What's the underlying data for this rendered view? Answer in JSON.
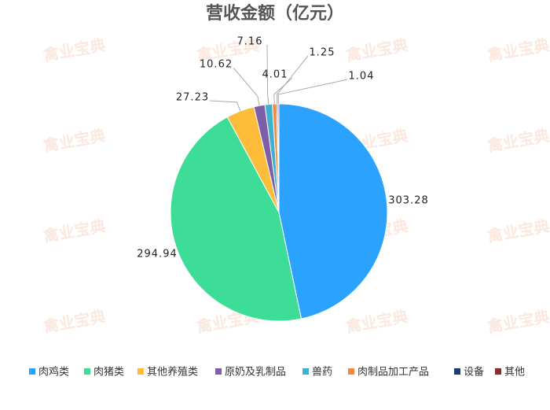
{
  "chart_data": {
    "type": "pie",
    "title": "营收金额（亿元）",
    "watermark": "禽业宝典",
    "categories": [
      "肉鸡类",
      "肉猪类",
      "其他养殖类",
      "原奶及乳制品",
      "兽药",
      "肉制品加工产品",
      "设备",
      "其他"
    ],
    "values": [
      303.28,
      294.94,
      27.23,
      10.62,
      7.16,
      4.01,
      1.25,
      1.04
    ],
    "colors": [
      "#2ca2ff",
      "#3ddc97",
      "#fdbc3a",
      "#7d5ea8",
      "#3fb0d0",
      "#f08a3e",
      "#1f3c70",
      "#8b2b2b"
    ],
    "legend": "bottom"
  }
}
